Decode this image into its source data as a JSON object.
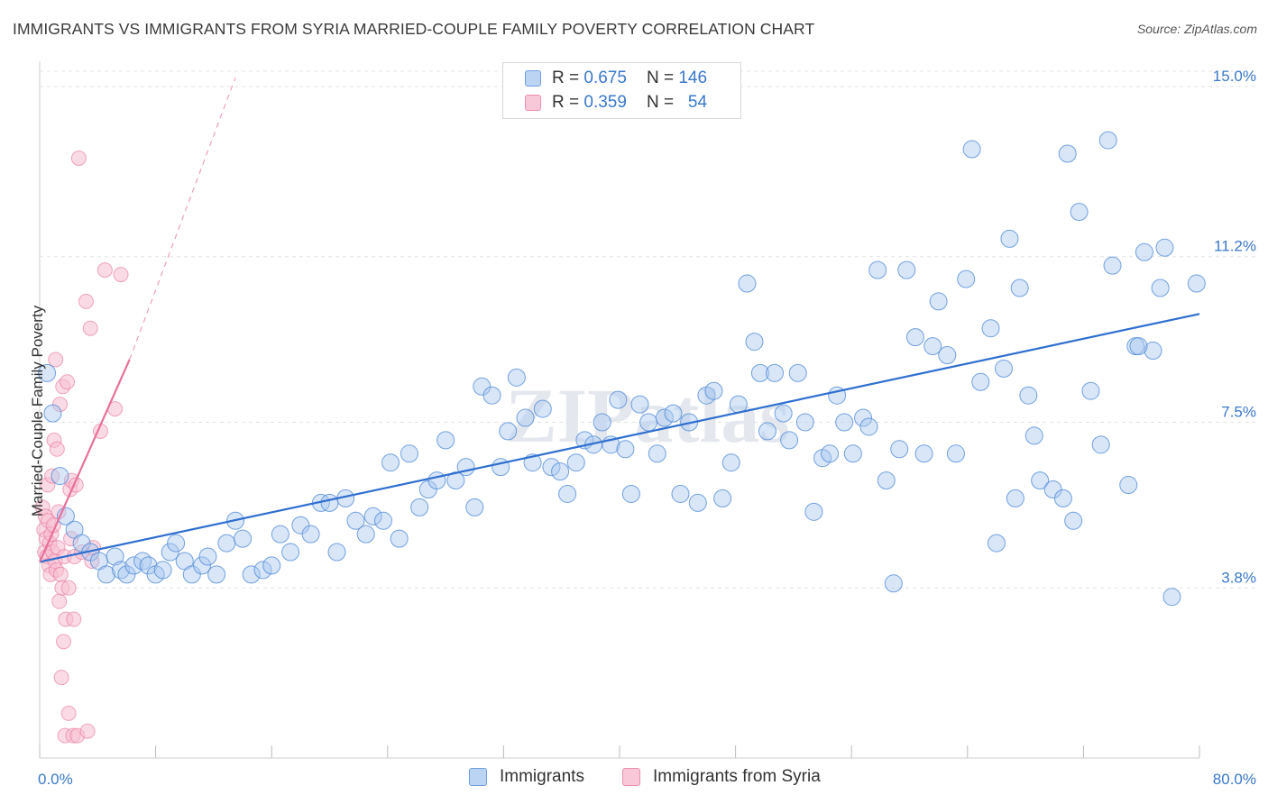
{
  "title": "IMMIGRANTS VS IMMIGRANTS FROM SYRIA MARRIED-COUPLE FAMILY POVERTY CORRELATION CHART",
  "source": "Source: ZipAtlas.com",
  "watermark": "ZIPatlas",
  "legend": {
    "rows": [
      {
        "r_label": "R =",
        "r_value": "0.675",
        "n_label": "N =",
        "n_value": "146"
      },
      {
        "r_label": "R =",
        "r_value": "0.359",
        "n_label": "N =",
        "n_value": "54"
      }
    ]
  },
  "chart_data": {
    "type": "scatter",
    "title": "IMMIGRANTS VS IMMIGRANTS FROM SYRIA MARRIED-COUPLE FAMILY POVERTY CORRELATION CHART",
    "xlabel": "",
    "ylabel": "Married-Couple Family Poverty",
    "xlim": [
      0,
      80
    ],
    "ylim": [
      0,
      15.5
    ],
    "x_tick_labels": [
      "0.0%",
      "80.0%"
    ],
    "y_ticks": [
      3.8,
      7.5,
      11.2,
      15.0
    ],
    "y_tick_labels": [
      "3.8%",
      "7.5%",
      "11.2%",
      "15.0%"
    ],
    "grid": true,
    "legend_position": "top-center",
    "colors": {
      "immigrants": "#4a86d6",
      "syria": "#e8709a",
      "immigrants_fill": "#a9c8ef",
      "syria_fill": "#f6bdd0",
      "axis_text": "#3a78c9"
    },
    "series": [
      {
        "name": "Immigrants",
        "R": 0.675,
        "N": 146,
        "trend": {
          "x": [
            0,
            80
          ],
          "y": [
            4.38,
            9.92
          ],
          "extrapolated": false
        },
        "points": [
          [
            0.5,
            8.6
          ],
          [
            0.9,
            7.7
          ],
          [
            1.4,
            6.3
          ],
          [
            1.8,
            5.4
          ],
          [
            2.4,
            5.1
          ],
          [
            2.9,
            4.8
          ],
          [
            3.5,
            4.6
          ],
          [
            4.1,
            4.4
          ],
          [
            4.6,
            4.1
          ],
          [
            5.2,
            4.5
          ],
          [
            5.6,
            4.2
          ],
          [
            6.0,
            4.1
          ],
          [
            6.5,
            4.3
          ],
          [
            7.1,
            4.4
          ],
          [
            7.5,
            4.3
          ],
          [
            8.0,
            4.1
          ],
          [
            8.5,
            4.2
          ],
          [
            9.0,
            4.6
          ],
          [
            9.4,
            4.8
          ],
          [
            10.0,
            4.4
          ],
          [
            10.5,
            4.1
          ],
          [
            11.2,
            4.3
          ],
          [
            11.6,
            4.5
          ],
          [
            12.2,
            4.1
          ],
          [
            12.9,
            4.8
          ],
          [
            13.5,
            5.3
          ],
          [
            14.0,
            4.9
          ],
          [
            14.6,
            4.1
          ],
          [
            15.4,
            4.2
          ],
          [
            16.0,
            4.3
          ],
          [
            16.6,
            5.0
          ],
          [
            17.3,
            4.6
          ],
          [
            18.0,
            5.2
          ],
          [
            18.7,
            5.0
          ],
          [
            19.4,
            5.7
          ],
          [
            20.0,
            5.7
          ],
          [
            20.5,
            4.6
          ],
          [
            21.1,
            5.8
          ],
          [
            21.8,
            5.3
          ],
          [
            22.5,
            5.0
          ],
          [
            23.0,
            5.4
          ],
          [
            23.7,
            5.3
          ],
          [
            24.2,
            6.6
          ],
          [
            24.8,
            4.9
          ],
          [
            25.5,
            6.8
          ],
          [
            26.2,
            5.6
          ],
          [
            26.8,
            6.0
          ],
          [
            27.4,
            6.2
          ],
          [
            28.0,
            7.1
          ],
          [
            28.7,
            6.2
          ],
          [
            29.4,
            6.5
          ],
          [
            30.0,
            5.6
          ],
          [
            30.5,
            8.3
          ],
          [
            31.2,
            8.1
          ],
          [
            31.8,
            6.5
          ],
          [
            32.3,
            7.3
          ],
          [
            32.9,
            8.5
          ],
          [
            33.5,
            7.6
          ],
          [
            34.0,
            6.6
          ],
          [
            34.7,
            7.8
          ],
          [
            35.3,
            6.5
          ],
          [
            35.9,
            6.4
          ],
          [
            36.4,
            5.9
          ],
          [
            37.0,
            6.6
          ],
          [
            37.6,
            7.1
          ],
          [
            38.2,
            7.0
          ],
          [
            38.8,
            7.5
          ],
          [
            39.4,
            7.0
          ],
          [
            39.9,
            8.0
          ],
          [
            40.4,
            6.9
          ],
          [
            40.8,
            5.9
          ],
          [
            41.4,
            7.9
          ],
          [
            42.0,
            7.5
          ],
          [
            42.6,
            6.8
          ],
          [
            43.1,
            7.6
          ],
          [
            43.7,
            7.7
          ],
          [
            44.2,
            5.9
          ],
          [
            44.8,
            7.5
          ],
          [
            45.4,
            5.7
          ],
          [
            46.0,
            8.1
          ],
          [
            46.5,
            8.2
          ],
          [
            47.1,
            5.8
          ],
          [
            47.7,
            6.6
          ],
          [
            48.2,
            7.9
          ],
          [
            48.8,
            10.6
          ],
          [
            49.3,
            9.3
          ],
          [
            49.7,
            8.6
          ],
          [
            50.2,
            7.3
          ],
          [
            50.7,
            8.6
          ],
          [
            51.3,
            7.7
          ],
          [
            51.7,
            7.1
          ],
          [
            52.3,
            8.6
          ],
          [
            52.8,
            7.5
          ],
          [
            53.4,
            5.5
          ],
          [
            54.0,
            6.7
          ],
          [
            54.5,
            6.8
          ],
          [
            55.0,
            8.1
          ],
          [
            55.5,
            7.5
          ],
          [
            56.1,
            6.8
          ],
          [
            56.8,
            7.6
          ],
          [
            57.2,
            7.4
          ],
          [
            57.8,
            10.9
          ],
          [
            58.4,
            6.2
          ],
          [
            58.9,
            3.9
          ],
          [
            59.3,
            6.9
          ],
          [
            59.8,
            10.9
          ],
          [
            60.4,
            9.4
          ],
          [
            61.0,
            6.8
          ],
          [
            61.6,
            9.2
          ],
          [
            62.0,
            10.2
          ],
          [
            62.6,
            9.0
          ],
          [
            63.2,
            6.8
          ],
          [
            63.9,
            10.7
          ],
          [
            64.3,
            13.6
          ],
          [
            64.9,
            8.4
          ],
          [
            65.6,
            9.6
          ],
          [
            66.0,
            4.8
          ],
          [
            66.5,
            8.7
          ],
          [
            67.3,
            5.8
          ],
          [
            67.6,
            10.5
          ],
          [
            68.2,
            8.1
          ],
          [
            68.6,
            7.2
          ],
          [
            69.0,
            6.2
          ],
          [
            69.9,
            6.0
          ],
          [
            70.6,
            5.8
          ],
          [
            70.9,
            13.5
          ],
          [
            71.7,
            12.2
          ],
          [
            72.5,
            8.2
          ],
          [
            73.2,
            7.0
          ],
          [
            74.0,
            11.0
          ],
          [
            75.1,
            6.1
          ],
          [
            75.6,
            9.2
          ],
          [
            76.2,
            11.3
          ],
          [
            76.8,
            9.1
          ],
          [
            77.3,
            10.5
          ],
          [
            78.1,
            3.6
          ],
          [
            79.8,
            10.6
          ],
          [
            73.7,
            13.8
          ],
          [
            66.9,
            11.6
          ],
          [
            71.3,
            5.3
          ],
          [
            75.8,
            9.2
          ],
          [
            77.6,
            11.4
          ]
        ]
      },
      {
        "name": "Immigrants from Syria",
        "R": 0.359,
        "N": 54,
        "trend": {
          "x": [
            0,
            6.2
          ],
          "y": [
            4.38,
            8.9
          ],
          "extrapolated": false
        },
        "trend_extension": {
          "x": [
            6.2,
            13.5
          ],
          "y": [
            8.9,
            15.2
          ],
          "extrapolated": true
        },
        "points": [
          [
            0.2,
            5.6
          ],
          [
            0.3,
            5.1
          ],
          [
            0.35,
            4.6
          ],
          [
            0.4,
            5.4
          ],
          [
            0.45,
            4.9
          ],
          [
            0.5,
            4.5
          ],
          [
            0.55,
            6.1
          ],
          [
            0.6,
            5.3
          ],
          [
            0.65,
            4.3
          ],
          [
            0.7,
            4.8
          ],
          [
            0.75,
            4.1
          ],
          [
            0.8,
            5.0
          ],
          [
            0.85,
            6.3
          ],
          [
            0.9,
            4.6
          ],
          [
            0.95,
            5.2
          ],
          [
            1.0,
            7.1
          ],
          [
            1.05,
            4.4
          ],
          [
            1.1,
            8.9
          ],
          [
            1.15,
            4.2
          ],
          [
            1.2,
            6.9
          ],
          [
            1.25,
            4.7
          ],
          [
            1.3,
            5.5
          ],
          [
            1.35,
            3.5
          ],
          [
            1.4,
            7.9
          ],
          [
            1.45,
            4.1
          ],
          [
            1.5,
            1.8
          ],
          [
            1.55,
            3.8
          ],
          [
            1.6,
            8.3
          ],
          [
            1.65,
            2.6
          ],
          [
            1.7,
            4.5
          ],
          [
            1.75,
            0.5
          ],
          [
            1.8,
            3.1
          ],
          [
            1.9,
            8.4
          ],
          [
            2.0,
            1.0
          ],
          [
            2.0,
            3.8
          ],
          [
            2.1,
            6.0
          ],
          [
            2.15,
            4.9
          ],
          [
            2.2,
            6.2
          ],
          [
            2.3,
            0.5
          ],
          [
            2.35,
            3.1
          ],
          [
            2.4,
            4.5
          ],
          [
            2.5,
            6.1
          ],
          [
            2.6,
            0.5
          ],
          [
            2.7,
            13.4
          ],
          [
            2.9,
            4.6
          ],
          [
            3.2,
            10.2
          ],
          [
            3.3,
            0.6
          ],
          [
            3.5,
            9.6
          ],
          [
            3.6,
            4.4
          ],
          [
            3.7,
            4.7
          ],
          [
            4.2,
            7.3
          ],
          [
            4.5,
            10.9
          ],
          [
            5.2,
            7.8
          ],
          [
            5.6,
            10.8
          ]
        ]
      }
    ]
  }
}
